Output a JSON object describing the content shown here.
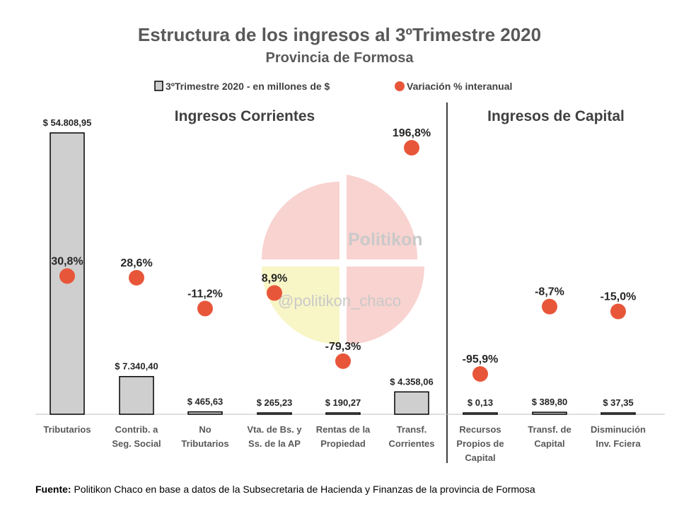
{
  "colors": {
    "bar_fill": "#d0cfcf",
    "bar_stroke": "#000000",
    "dot": "#e8563a",
    "divider": "#404040",
    "axis": "#bfbfbf",
    "watermark_red": "#f6c8c4",
    "watermark_yellow": "#f6f3b8"
  },
  "watermark": {
    "name": "Politikon",
    "handle": "@politikon_chaco"
  },
  "footer": {
    "label": "Fuente:",
    "text": "Politikon Chaco en base a datos de la Subsecretaria de Hacienda y Finanzas de la provincia de Formosa"
  },
  "chart_data": {
    "type": "bar",
    "title": "Estructura de los ingresos al 3ºTrimestre 2020",
    "subtitle": "Provincia de Formosa",
    "legend": {
      "bars": "3ºTrimestre 2020 - en millones de $",
      "dots": "Variación % interanual",
      "position": "top"
    },
    "sections": [
      {
        "title": "Ingresos Corrientes",
        "from": 0,
        "to": 5
      },
      {
        "title": "Ingresos de Capital",
        "from": 6,
        "to": 8
      }
    ],
    "categories": [
      [
        "Tributarios"
      ],
      [
        "Contrib. a",
        "Seg. Social"
      ],
      [
        "No",
        "Tributarios"
      ],
      [
        "Vta. de Bs. y",
        "Ss. de la AP"
      ],
      [
        "Rentas de la",
        "Propiedad"
      ],
      [
        "Transf.",
        "Corrientes"
      ],
      [
        "Recursos",
        "Propios de",
        "Capital"
      ],
      [
        "Transf. de",
        "Capital"
      ],
      [
        "Disminución",
        "Inv. Fciera"
      ]
    ],
    "series": [
      {
        "name": "3ºTrimestre 2020 - en millones de $",
        "kind": "bar",
        "values": [
          54808.95,
          7340.4,
          465.63,
          265.23,
          190.27,
          4358.06,
          0.13,
          389.8,
          37.35
        ],
        "labels": [
          "$ 54.808,95",
          "$ 7.340,40",
          "$ 465,63",
          "$ 265,23",
          "$ 190,27",
          "$ 4.358,06",
          "$ 0,13",
          "$ 389,80",
          "$ 37,35"
        ],
        "ylim": [
          0,
          54808.95
        ]
      },
      {
        "name": "Variación % interanual",
        "kind": "dot",
        "values": [
          30.8,
          28.6,
          -11.2,
          8.9,
          -79.3,
          196.8,
          -95.9,
          -8.7,
          -15.0
        ],
        "labels": [
          "30,8%",
          "28,6%",
          "-11,2%",
          "8,9%",
          "-79,3%",
          "196,8%",
          "-95,9%",
          "-8,7%",
          "-15,0%"
        ],
        "ylim": [
          -160,
          230
        ]
      }
    ]
  }
}
